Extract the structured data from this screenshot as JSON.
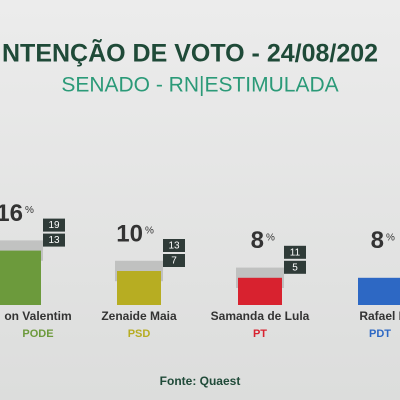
{
  "chart_data": {
    "type": "bar",
    "title": "NTENÇÃO DE VOTO - 24/08/202",
    "subtitle": "SENADO - RN|ESTIMULADA",
    "source": "Fonte: Quaest",
    "unit": "%",
    "categories": [
      "on Valentim",
      "Zenaide Maia",
      "Samanda de Lula",
      "Rafael M"
    ],
    "parties": [
      "PODE",
      "PSD",
      "PT",
      "PDT"
    ],
    "values": [
      16,
      10,
      8,
      8
    ],
    "upper": [
      19,
      13,
      11,
      null
    ],
    "lower": [
      13,
      7,
      5,
      null
    ],
    "colors": [
      "#6c9a3c",
      "#b7ad22",
      "#d8222f",
      "#2d68c4"
    ],
    "ylim": [
      0,
      20
    ]
  }
}
